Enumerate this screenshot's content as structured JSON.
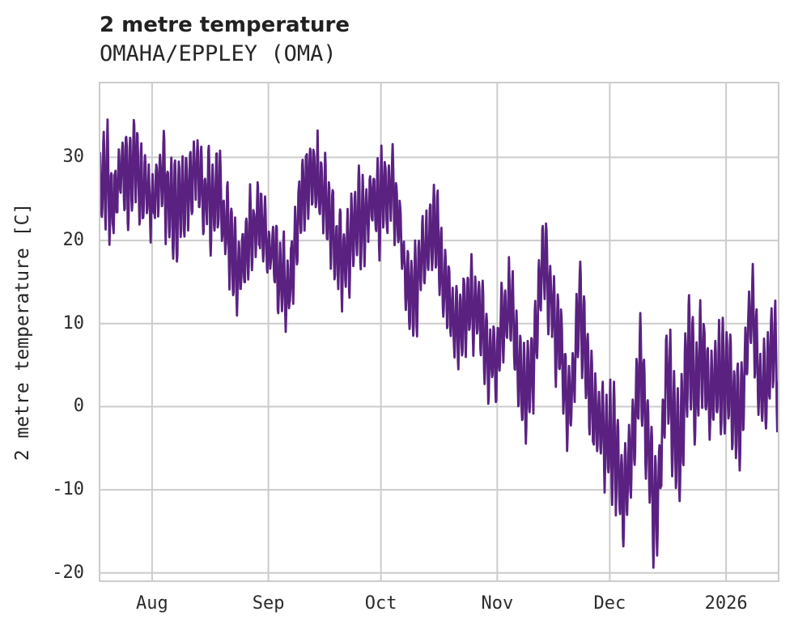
{
  "chart_data": {
    "type": "line",
    "title": "2 metre temperature",
    "subtitle": "OMAHA/EPPLEY (OMA)",
    "ylabel": "2 metre temperature [C]",
    "xlabel": "",
    "line_color": "#5a2181",
    "grid_color": "#cccccc",
    "background_color": "#ffffff",
    "grid": true,
    "legend": "none",
    "x_range": [
      "2025-07-18",
      "2026-01-15"
    ],
    "ylim": [
      -21,
      39
    ],
    "yticks": [
      30,
      20,
      10,
      0,
      -10,
      -20
    ],
    "xticks": [
      {
        "label": "Aug",
        "date": "2025-08-01"
      },
      {
        "label": "Sep",
        "date": "2025-09-01"
      },
      {
        "label": "Oct",
        "date": "2025-10-01"
      },
      {
        "label": "Nov",
        "date": "2025-11-01"
      },
      {
        "label": "Dec",
        "date": "2025-12-01"
      },
      {
        "label": "2026",
        "date": "2026-01-01"
      }
    ],
    "series": [
      {
        "name": "2 metre temperature",
        "sampling": "hourly temperatures shown; anchors below are daily means read off the plot",
        "samples_per_day": 8,
        "diurnal_amplitude_c": [
          3,
          6
        ],
        "winter_amplitude_c": [
          4,
          7.5
        ],
        "winter_day_window": [
          136,
          166
        ],
        "noise_c": 1.4,
        "observed_max_c": 36,
        "observed_min_c": -18,
        "anchors_daily_mean": [
          [
            "2025-07-18",
            26
          ],
          [
            "2025-07-20",
            27
          ],
          [
            "2025-07-22",
            25
          ],
          [
            "2025-07-24",
            28.5
          ],
          [
            "2025-07-26",
            27
          ],
          [
            "2025-07-28",
            30
          ],
          [
            "2025-07-30",
            25
          ],
          [
            "2025-08-01",
            23.5
          ],
          [
            "2025-08-03",
            27
          ],
          [
            "2025-08-05",
            25.5
          ],
          [
            "2025-08-07",
            23.5
          ],
          [
            "2025-08-09",
            25.5
          ],
          [
            "2025-08-11",
            27
          ],
          [
            "2025-08-13",
            28.5
          ],
          [
            "2025-08-15",
            26.5
          ],
          [
            "2025-08-17",
            25
          ],
          [
            "2025-08-19",
            27
          ],
          [
            "2025-08-21",
            22
          ],
          [
            "2025-08-23",
            17
          ],
          [
            "2025-08-25",
            16.5
          ],
          [
            "2025-08-27",
            21
          ],
          [
            "2025-08-29",
            22.5
          ],
          [
            "2025-08-31",
            20
          ],
          [
            "2025-09-02",
            18.5
          ],
          [
            "2025-09-04",
            15
          ],
          [
            "2025-09-06",
            13
          ],
          [
            "2025-09-08",
            19
          ],
          [
            "2025-09-10",
            25
          ],
          [
            "2025-09-12",
            28.5
          ],
          [
            "2025-09-14",
            28
          ],
          [
            "2025-09-16",
            25.5
          ],
          [
            "2025-09-18",
            21.5
          ],
          [
            "2025-09-20",
            19
          ],
          [
            "2025-09-22",
            19.5
          ],
          [
            "2025-09-24",
            21.5
          ],
          [
            "2025-09-26",
            22.5
          ],
          [
            "2025-09-28",
            23.5
          ],
          [
            "2025-09-30",
            24
          ],
          [
            "2025-10-02",
            25
          ],
          [
            "2025-10-04",
            25.5
          ],
          [
            "2025-10-06",
            21
          ],
          [
            "2025-10-08",
            15
          ],
          [
            "2025-10-10",
            13.5
          ],
          [
            "2025-10-12",
            17
          ],
          [
            "2025-10-14",
            20
          ],
          [
            "2025-10-16",
            21
          ],
          [
            "2025-10-18",
            16
          ],
          [
            "2025-10-20",
            11
          ],
          [
            "2025-10-22",
            9
          ],
          [
            "2025-10-24",
            12.5
          ],
          [
            "2025-10-26",
            12
          ],
          [
            "2025-10-28",
            10
          ],
          [
            "2025-10-30",
            6.5
          ],
          [
            "2025-11-01",
            6
          ],
          [
            "2025-11-03",
            11.5
          ],
          [
            "2025-11-05",
            10.5
          ],
          [
            "2025-11-07",
            3
          ],
          [
            "2025-11-09",
            1
          ],
          [
            "2025-11-11",
            8
          ],
          [
            "2025-11-13",
            17
          ],
          [
            "2025-11-14",
            18
          ],
          [
            "2025-11-16",
            10
          ],
          [
            "2025-11-18",
            7.5
          ],
          [
            "2025-11-20",
            -1
          ],
          [
            "2025-11-21",
            2
          ],
          [
            "2025-11-23",
            13
          ],
          [
            "2025-11-25",
            4
          ],
          [
            "2025-11-27",
            0.5
          ],
          [
            "2025-11-29",
            -2.5
          ],
          [
            "2025-12-01",
            -4
          ],
          [
            "2025-12-03",
            -5.5
          ],
          [
            "2025-12-04",
            -12
          ],
          [
            "2025-12-06",
            -7
          ],
          [
            "2025-12-08",
            0
          ],
          [
            "2025-12-09",
            4
          ],
          [
            "2025-12-11",
            -4
          ],
          [
            "2025-12-13",
            -13
          ],
          [
            "2025-12-15",
            -6
          ],
          [
            "2025-12-16",
            6
          ],
          [
            "2025-12-18",
            -2
          ],
          [
            "2025-12-20",
            -4
          ],
          [
            "2025-12-22",
            7
          ],
          [
            "2025-12-24",
            2
          ],
          [
            "2025-12-26",
            6
          ],
          [
            "2025-12-28",
            0
          ],
          [
            "2025-12-30",
            3
          ],
          [
            "2026-01-01",
            5
          ],
          [
            "2026-01-03",
            0
          ],
          [
            "2026-01-05",
            -1
          ],
          [
            "2026-01-07",
            11
          ],
          [
            "2026-01-08",
            12
          ],
          [
            "2026-01-10",
            2.5
          ],
          [
            "2026-01-12",
            5
          ],
          [
            "2026-01-14",
            8
          ],
          [
            "2026-01-15",
            0
          ]
        ]
      }
    ]
  }
}
